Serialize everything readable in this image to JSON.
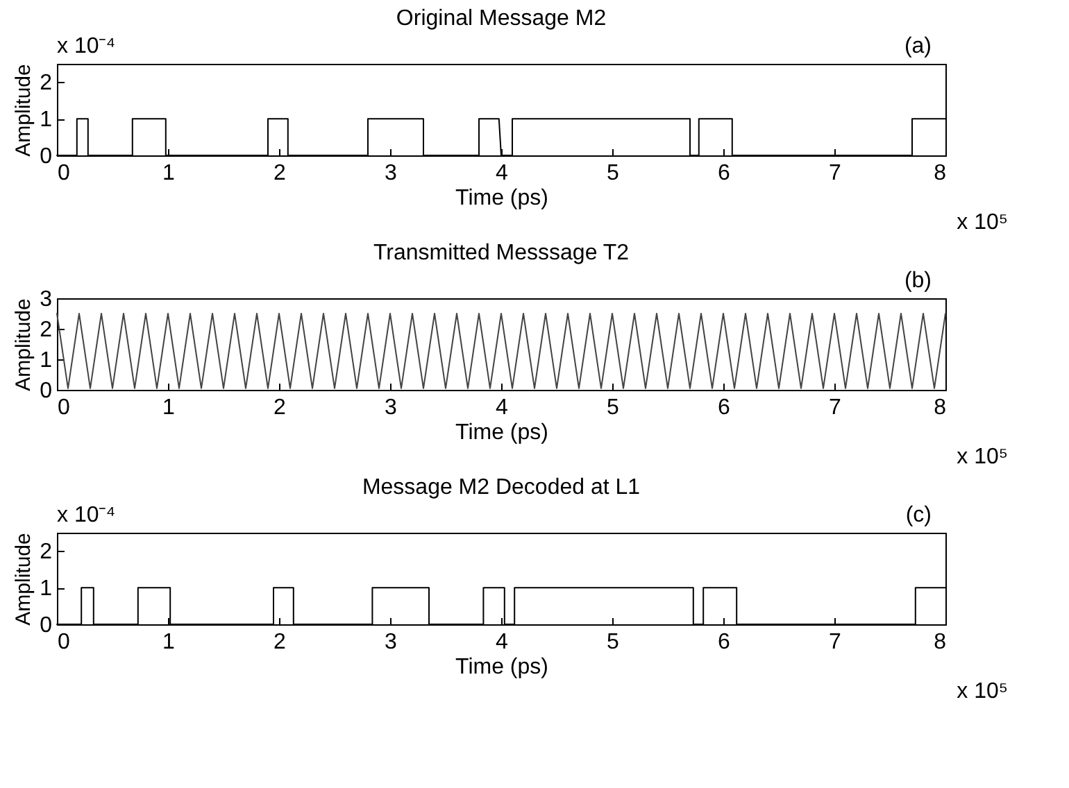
{
  "chart_data": [
    {
      "type": "line",
      "title": "Original Message M2",
      "xlabel": "Time (ps)",
      "ylabel": "Amplitude",
      "annotations": [
        "(a)",
        "x 10⁵",
        "x 10⁻⁴"
      ],
      "xlim": [
        0,
        8
      ],
      "xticks": [
        0,
        1,
        2,
        3,
        4,
        5,
        6,
        7,
        8
      ],
      "ylim": [
        0,
        2.5
      ],
      "yticks": [
        0,
        1,
        2
      ],
      "grid": false,
      "series": [
        {
          "color": "#000000",
          "x": [
            0,
            0.18,
            0.18,
            0.28,
            0.28,
            0.68,
            0.68,
            0.98,
            0.98,
            1.9,
            1.9,
            2.08,
            2.08,
            2.8,
            2.8,
            3.3,
            3.3,
            3.8,
            3.8,
            3.98,
            4.0,
            4.1,
            4.1,
            5.7,
            5.7,
            5.78,
            5.78,
            6.08,
            6.08,
            7.7,
            7.7,
            8
          ],
          "values": [
            0,
            0,
            1,
            1,
            0,
            0,
            1,
            1,
            0,
            0,
            1,
            1,
            0,
            0,
            1,
            1,
            0,
            0,
            1,
            1,
            0,
            0,
            1,
            1,
            0,
            0,
            1,
            1,
            0,
            0,
            1,
            1
          ]
        }
      ]
    },
    {
      "type": "line",
      "title": "Transmitted Messsage T2",
      "xlabel": "Time (ps)",
      "ylabel": "Amplitude",
      "annotations": [
        "(b)",
        "x 10⁵"
      ],
      "xlim": [
        0,
        8
      ],
      "xticks": [
        0,
        1,
        2,
        3,
        4,
        5,
        6,
        7,
        8
      ],
      "ylim": [
        0,
        3
      ],
      "yticks": [
        0,
        1,
        2,
        3
      ],
      "grid": false,
      "series": [
        {
          "color": "#444444",
          "x": [
            0,
            0.1,
            0.2,
            0.3,
            0.4,
            0.5,
            0.6,
            0.7,
            0.8,
            0.9,
            1,
            1.1,
            1.2,
            1.3,
            1.4,
            1.5,
            1.6,
            1.7,
            1.8,
            1.9,
            2,
            2.1,
            2.2,
            2.3,
            2.4,
            2.5,
            2.6,
            2.7,
            2.8,
            2.9,
            3,
            3.1,
            3.2,
            3.3,
            3.4,
            3.5,
            3.6,
            3.7,
            3.8,
            3.9,
            4,
            4.1,
            4.2,
            4.3,
            4.4,
            4.5,
            4.6,
            4.7,
            4.8,
            4.9,
            5,
            5.1,
            5.2,
            5.3,
            5.4,
            5.5,
            5.6,
            5.7,
            5.8,
            5.9,
            6,
            6.1,
            6.2,
            6.3,
            6.4,
            6.5,
            6.6,
            6.7,
            6.8,
            6.9,
            7,
            7.1,
            7.2,
            7.3,
            7.4,
            7.5,
            7.6,
            7.7,
            7.8,
            7.9,
            8
          ],
          "values": [
            2.5,
            0.05,
            2.5,
            0.05,
            2.5,
            0.05,
            2.5,
            0.05,
            2.5,
            0.05,
            2.5,
            0.05,
            2.5,
            0.05,
            2.5,
            0.05,
            2.5,
            0.05,
            2.5,
            0.05,
            2.5,
            0.05,
            2.5,
            0.05,
            2.5,
            0.05,
            2.5,
            0.05,
            2.5,
            0.05,
            2.5,
            0.05,
            2.5,
            0.05,
            2.5,
            0.05,
            2.5,
            0.05,
            2.5,
            0.05,
            2.5,
            0.05,
            2.5,
            0.05,
            2.5,
            0.05,
            2.5,
            0.05,
            2.5,
            0.05,
            2.5,
            0.05,
            2.5,
            0.05,
            2.5,
            0.05,
            2.5,
            0.05,
            2.5,
            0.05,
            2.5,
            0.05,
            2.5,
            0.05,
            2.5,
            0.05,
            2.5,
            0.05,
            2.5,
            0.05,
            2.5,
            0.05,
            2.5,
            0.05,
            2.5,
            0.05,
            2.5,
            0.05,
            2.5,
            0.05,
            2.5
          ]
        }
      ]
    },
    {
      "type": "line",
      "title": "Message M2 Decoded at L1",
      "xlabel": "Time (ps)",
      "ylabel": "Amplitude",
      "annotations": [
        "(c)",
        "x 10⁵",
        "x 10⁻⁴"
      ],
      "xlim": [
        0,
        8
      ],
      "xticks": [
        0,
        1,
        2,
        3,
        4,
        5,
        6,
        7,
        8
      ],
      "ylim": [
        0,
        2.5
      ],
      "yticks": [
        0,
        1,
        2
      ],
      "grid": false,
      "series": [
        {
          "color": "#000000",
          "x": [
            0,
            0.22,
            0.22,
            0.33,
            0.33,
            0.73,
            0.73,
            1.02,
            1.02,
            1.95,
            1.95,
            2.13,
            2.13,
            2.84,
            2.84,
            3.35,
            3.35,
            3.84,
            3.84,
            4.03,
            4.03,
            4.12,
            4.12,
            5.73,
            5.73,
            5.82,
            5.82,
            6.12,
            6.12,
            7.73,
            7.73,
            8
          ],
          "values": [
            0,
            0,
            1,
            1,
            0,
            0,
            1,
            1,
            0,
            0,
            1,
            1,
            0,
            0,
            1,
            1,
            0,
            0,
            1,
            1,
            0,
            0,
            1,
            1,
            0,
            0,
            1,
            1,
            0,
            0,
            1,
            1
          ]
        }
      ]
    }
  ]
}
